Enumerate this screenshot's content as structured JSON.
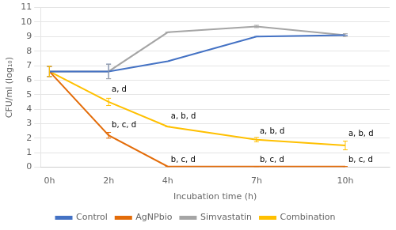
{
  "chart_data": {
    "type": "line",
    "x": [
      0,
      2,
      4,
      7,
      10
    ],
    "xlabel": "Incubation time (h)",
    "ylabel": "CFU/ml (log₁₀)",
    "xlim": [
      -0.3,
      11.5
    ],
    "xticks": [
      {
        "value": 0,
        "label": "0h"
      },
      {
        "value": 2,
        "label": "2h"
      },
      {
        "value": 4,
        "label": "4h"
      },
      {
        "value": 7,
        "label": "7h"
      },
      {
        "value": 10,
        "label": "10h"
      }
    ],
    "ylim": [
      0,
      11
    ],
    "yticks": [
      0,
      1,
      2,
      3,
      4,
      5,
      6,
      7,
      8,
      9,
      10,
      11
    ],
    "grid": "y",
    "legend": "bottom",
    "series": [
      {
        "name": "Control",
        "color": "#4472C4",
        "values": [
          6.6,
          6.6,
          7.3,
          9.0,
          9.1
        ],
        "yerr": [
          0.35,
          0.5,
          0.0,
          0.0,
          0.0
        ]
      },
      {
        "name": "AgNPbio",
        "color": "#E36C09",
        "values": [
          6.6,
          2.2,
          0.05,
          0.05,
          0.05
        ],
        "yerr": [
          0.35,
          0.2,
          0.0,
          0.0,
          0.0
        ]
      },
      {
        "name": "Simvastatin",
        "color": "#A5A5A5",
        "values": [
          6.6,
          6.6,
          9.3,
          9.7,
          9.1
        ],
        "yerr": [
          0.35,
          0.5,
          0.0,
          0.08,
          0.1
        ]
      },
      {
        "name": "Combination",
        "color": "#FFC000",
        "values": [
          6.6,
          4.5,
          2.8,
          1.9,
          1.5
        ],
        "yerr": [
          0.35,
          0.25,
          0.0,
          0.15,
          0.3
        ]
      }
    ],
    "annotations": [
      {
        "text": "a, d",
        "x": 2,
        "y": 5.05
      },
      {
        "text": "b, c, d",
        "x": 2,
        "y": 2.6
      },
      {
        "text": "a, b, d",
        "x": 4,
        "y": 3.2
      },
      {
        "text": "b, c, d",
        "x": 4,
        "y": 0.25
      },
      {
        "text": "a, b, d",
        "x": 7,
        "y": 2.2
      },
      {
        "text": "b, c, d",
        "x": 7,
        "y": 0.25
      },
      {
        "text": "a, b, d",
        "x": 10,
        "y": 2.0
      },
      {
        "text": "b, c, d",
        "x": 10,
        "y": 0.25
      }
    ]
  }
}
